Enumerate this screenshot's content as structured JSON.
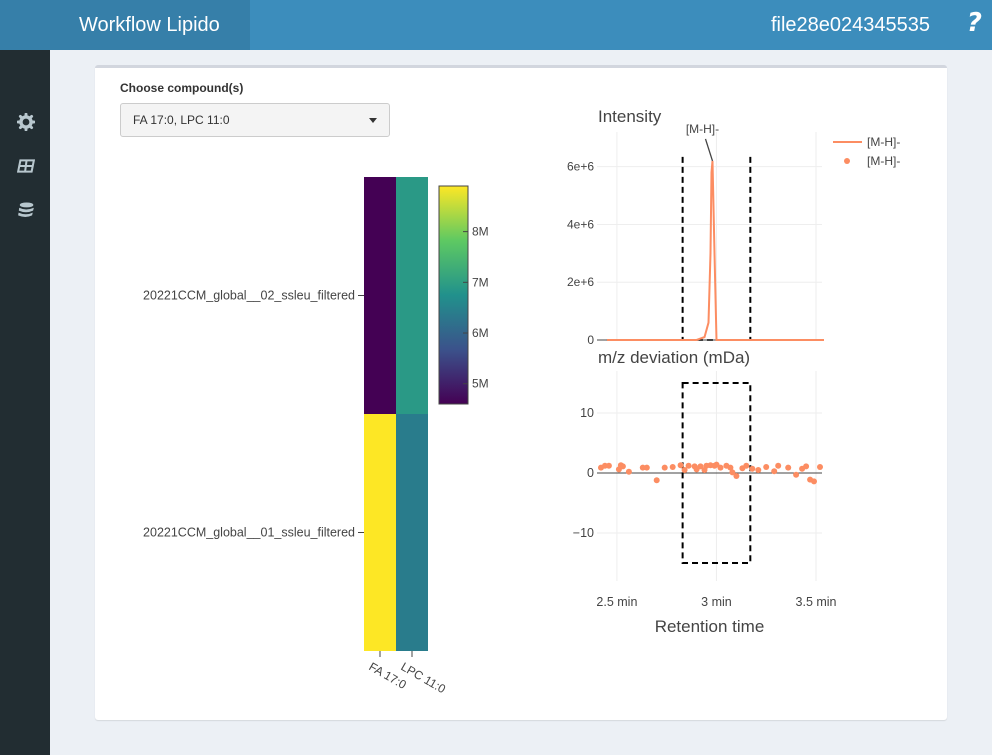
{
  "header": {
    "app_title": "Workflow Lipido",
    "file_name": "file28e024345535",
    "help_label": "?"
  },
  "sidebar": {
    "icons": [
      "gear-icon",
      "table-icon",
      "database-icon"
    ]
  },
  "compound_select": {
    "label": "Choose compound(s)",
    "value": "FA 17:0, LPC 11:0"
  },
  "chart_data": [
    {
      "type": "heatmap",
      "rows": [
        "20221CCM_global__02_ssleu_filtered",
        "20221CCM_global__01_ssleu_filtered"
      ],
      "columns": [
        "FA 17:0",
        "LPC 11:0"
      ],
      "values": [
        [
          4.6,
          6.9
        ],
        [
          8.9,
          6.4
        ]
      ],
      "colorbar": {
        "ticks": [
          "8M",
          "7M",
          "6M",
          "5M"
        ],
        "tick_values": [
          8,
          7,
          6,
          5
        ],
        "range": [
          4.6,
          8.9
        ],
        "colorscale": "viridis"
      }
    },
    {
      "type": "line",
      "title": "Intensity",
      "annotation": "[M-H]-",
      "legend": [
        {
          "name": "[M-H]-",
          "kind": "line"
        },
        {
          "name": "[M-H]-",
          "kind": "marker"
        }
      ],
      "legend_placement": "top-right",
      "color": "#fc8d62",
      "ytick_labels": [
        "0",
        "2e+6",
        "4e+6",
        "6e+6"
      ],
      "ytick_values": [
        0,
        2000000,
        4000000,
        6000000
      ],
      "xlim": [
        2.4,
        3.53
      ],
      "ylim": [
        0,
        7200000
      ],
      "series": [
        {
          "name": "[M-H]-",
          "x": [
            2.45,
            2.6,
            2.8,
            2.9,
            2.94,
            2.96,
            2.97,
            2.975,
            2.98,
            2.99,
            3.0,
            3.02,
            3.2,
            3.3,
            3.38,
            3.54
          ],
          "y": [
            0,
            0,
            0,
            0,
            100000,
            600000,
            3000000,
            5800000,
            6200000,
            3000000,
            0,
            0,
            0,
            0,
            0,
            0
          ]
        }
      ],
      "integration_bounds": [
        2.83,
        3.17
      ]
    },
    {
      "type": "scatter",
      "title": "m/z deviation (mDa)",
      "xlabel": "Retention time",
      "xtick_labels": [
        "2.5 min",
        "3 min",
        "3.5 min"
      ],
      "xtick_values": [
        2.5,
        3.0,
        3.5
      ],
      "ytick_labels": [
        "10",
        "0",
        "−10"
      ],
      "ytick_values": [
        10,
        0,
        -10
      ],
      "xlim": [
        2.4,
        3.53
      ],
      "ylim": [
        -18,
        17
      ],
      "color": "#fc8d62",
      "integration_bounds": [
        2.83,
        3.17
      ],
      "integration_range_y": [
        -15,
        15
      ],
      "x": [
        2.42,
        2.44,
        2.46,
        2.51,
        2.52,
        2.53,
        2.56,
        2.63,
        2.65,
        2.7,
        2.74,
        2.78,
        2.82,
        2.84,
        2.86,
        2.89,
        2.9,
        2.92,
        2.94,
        2.95,
        2.97,
        2.99,
        3.0,
        3.02,
        3.05,
        3.07,
        3.08,
        3.1,
        3.13,
        3.15,
        3.18,
        3.21,
        3.25,
        3.29,
        3.31,
        3.36,
        3.4,
        3.43,
        3.45,
        3.47,
        3.49,
        3.52
      ],
      "y": [
        0.9,
        1.2,
        1.2,
        0.6,
        1.3,
        1.1,
        0.2,
        0.9,
        0.9,
        -1.2,
        0.9,
        1.0,
        1.3,
        0.5,
        1.2,
        1.1,
        0.6,
        1.1,
        0.5,
        1.2,
        1.3,
        1.2,
        1.4,
        0.9,
        1.2,
        0.9,
        0.1,
        -0.5,
        0.8,
        1.2,
        0.7,
        0.5,
        1.0,
        0.3,
        1.2,
        0.9,
        -0.3,
        0.7,
        1.1,
        -1.1,
        -1.4,
        1.0
      ]
    }
  ]
}
